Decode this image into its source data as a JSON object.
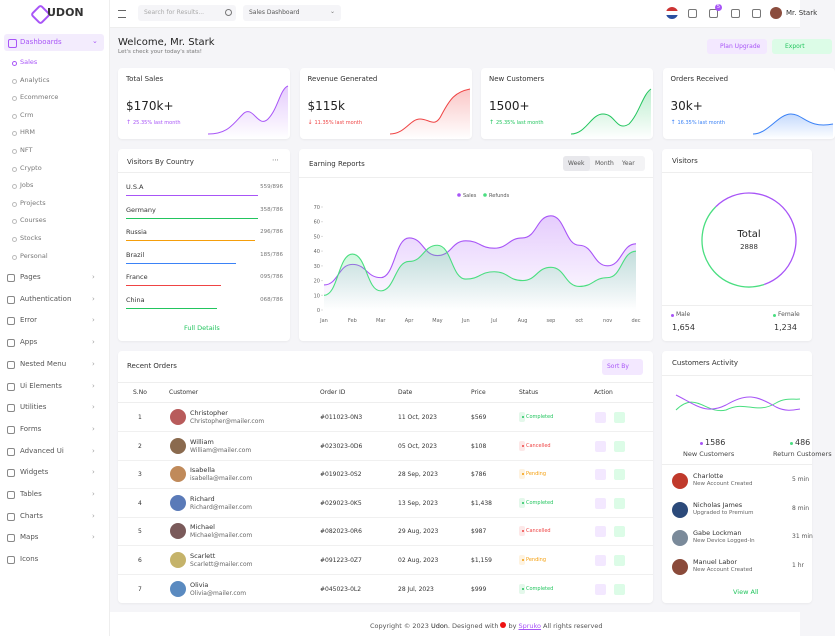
{
  "brand": "UDON",
  "sidebar": {
    "active": "Dashboards",
    "submenu": [
      "Sales",
      "Analytics",
      "Ecommerce",
      "Crm",
      "HRM",
      "NFT",
      "Crypto",
      "Jobs",
      "Projects",
      "Courses",
      "Stocks",
      "Personal"
    ],
    "menu": [
      "Pages",
      "Authentication",
      "Error",
      "Apps",
      "Nested Menu",
      "Ui Elements",
      "Utilities",
      "Forms",
      "Advanced Ui",
      "Widgets",
      "Tables",
      "Charts",
      "Maps",
      "Icons"
    ]
  },
  "header": {
    "search": "Search for Results...",
    "dashboard_select": "Sales Dashboard",
    "cart_count": 5,
    "user": "Mr. Stark"
  },
  "welcome": {
    "title": "Welcome, Mr. Stark",
    "subtitle": "Let's check your today's stats!",
    "buttons": [
      "Plan Upgrade",
      "Export"
    ]
  },
  "stats": [
    {
      "title": "Total Sales",
      "value": "$170k+",
      "change": "25.35% last month",
      "trend": "up",
      "color": "#a855f7"
    },
    {
      "title": "Revenue Generated",
      "value": "$115k",
      "change": "11.35% last month",
      "trend": "down",
      "color": "#ef4444"
    },
    {
      "title": "New Customers",
      "value": "1500+",
      "change": "25.35% last month",
      "trend": "up",
      "color": "#22c55e"
    },
    {
      "title": "Orders Received",
      "value": "30k+",
      "change": "16.35% last month",
      "trend": "up",
      "color": "#3b82f6"
    }
  ],
  "visitors_by_country": {
    "title": "Visitors By Country",
    "rows": [
      {
        "country": "U.S.A",
        "count": "559/896",
        "color": "#a855f7"
      },
      {
        "country": "Germany",
        "count": "358/786",
        "color": "#22c55e"
      },
      {
        "country": "Russia",
        "count": "296/786",
        "color": "#f59e0b"
      },
      {
        "country": "Brazil",
        "count": "185/786",
        "color": "#3b82f6"
      },
      {
        "country": "France",
        "count": "095/786",
        "color": "#ef4444"
      },
      {
        "country": "China",
        "count": "068/786",
        "color": "#22c55e"
      }
    ],
    "link": "Full Details"
  },
  "earning_reports": {
    "title": "Earning Reports",
    "tabs": [
      "Week",
      "Month",
      "Year"
    ],
    "chart": {
      "type": "line",
      "categories": [
        "Jan",
        "Feb",
        "Mar",
        "Apr",
        "May",
        "Jun",
        "Jul",
        "Aug",
        "sep",
        "oct",
        "nov",
        "dec"
      ],
      "series": [
        {
          "name": "Sales",
          "color": "#a855f7",
          "values": [
            17,
            31,
            22,
            49,
            37,
            47,
            42,
            49,
            64,
            44,
            30,
            45
          ]
        },
        {
          "name": "Refunds",
          "color": "#4ade80",
          "values": [
            10,
            38,
            13,
            33,
            44,
            21,
            26,
            20,
            29,
            16,
            22,
            40
          ]
        }
      ],
      "ylim": [
        0,
        70
      ],
      "yticks": [
        0,
        10,
        20,
        30,
        40,
        50,
        60,
        70
      ]
    }
  },
  "visitors": {
    "title": "Visitors",
    "total_label": "Total",
    "total": 2888,
    "segments": [
      {
        "name": "Male",
        "value": {
          "value": 1654,
          "label": "1,654"
        },
        "color": "#a855f7"
      },
      {
        "name": "Female",
        "value": {
          "value": 1234,
          "label": "1,234"
        },
        "color": "#4ade80"
      }
    ]
  },
  "recent_orders": {
    "title": "Recent Orders",
    "sort": "Sort By",
    "columns": [
      "S.No",
      "Customer",
      "Order ID",
      "Date",
      "Price",
      "Status",
      "Action"
    ],
    "rows": [
      {
        "no": 1,
        "name": "Christopher",
        "email": "Christopher@mailer.com",
        "order_id": "#011023-0N3",
        "date": "11 Oct, 2023",
        "price": "$569",
        "status": "Completed",
        "status_color": "#22c55e"
      },
      {
        "no": 2,
        "name": "William",
        "email": "William@mailer.com",
        "order_id": "#023023-0D6",
        "date": "05 Oct, 2023",
        "price": "$108",
        "status": "Cancelled",
        "status_color": "#ef4444"
      },
      {
        "no": 3,
        "name": "Isabella",
        "email": "isabella@mailer.com",
        "order_id": "#019023-0S2",
        "date": "28 Sep, 2023",
        "price": "$786",
        "status": "Pending",
        "status_color": "#f59e0b"
      },
      {
        "no": 4,
        "name": "Richard",
        "email": "Richard@mailer.com",
        "order_id": "#029023-0K5",
        "date": "13 Sep, 2023",
        "price": "$1,438",
        "status": "Completed",
        "status_color": "#22c55e"
      },
      {
        "no": 5,
        "name": "Michael",
        "email": "Michael@mailer.com",
        "order_id": "#082023-0R6",
        "date": "29 Aug, 2023",
        "price": "$987",
        "status": "Cancelled",
        "status_color": "#ef4444"
      },
      {
        "no": 6,
        "name": "Scarlett",
        "email": "Scarlett@mailer.com",
        "order_id": "#091223-0Z7",
        "date": "02 Aug, 2023",
        "price": "$1,159",
        "status": "Pending",
        "status_color": "#f59e0b"
      },
      {
        "no": 7,
        "name": "Olivia",
        "email": "Olivia@mailer.com",
        "order_id": "#045023-0L2",
        "date": "28 Jul, 2023",
        "price": "$999",
        "status": "Completed",
        "status_color": "#22c55e"
      }
    ]
  },
  "customers_activity": {
    "title": "Customers Activity",
    "stats": [
      {
        "value": 1586,
        "label": "New Customers"
      },
      {
        "value": 486,
        "label": "Return Customers"
      }
    ],
    "list": [
      {
        "name": "Charlotte",
        "detail": "New Account Created",
        "time": "5 min"
      },
      {
        "name": "Nicholas James",
        "detail": "Upgraded to Premium",
        "time": "8 min"
      },
      {
        "name": "Gabe Lockman",
        "detail": "New Device Logged-In",
        "time": "31 min"
      },
      {
        "name": "Manuel Labor",
        "detail": "New Account Created",
        "time": "1 hr"
      }
    ],
    "link": "View All"
  },
  "footer": {
    "copyright": "Copyright © 2023",
    "brand": "Udon",
    "designed": ". Designed with",
    "by": "by",
    "company": "Spruko",
    "rights": "All rights reserved"
  }
}
